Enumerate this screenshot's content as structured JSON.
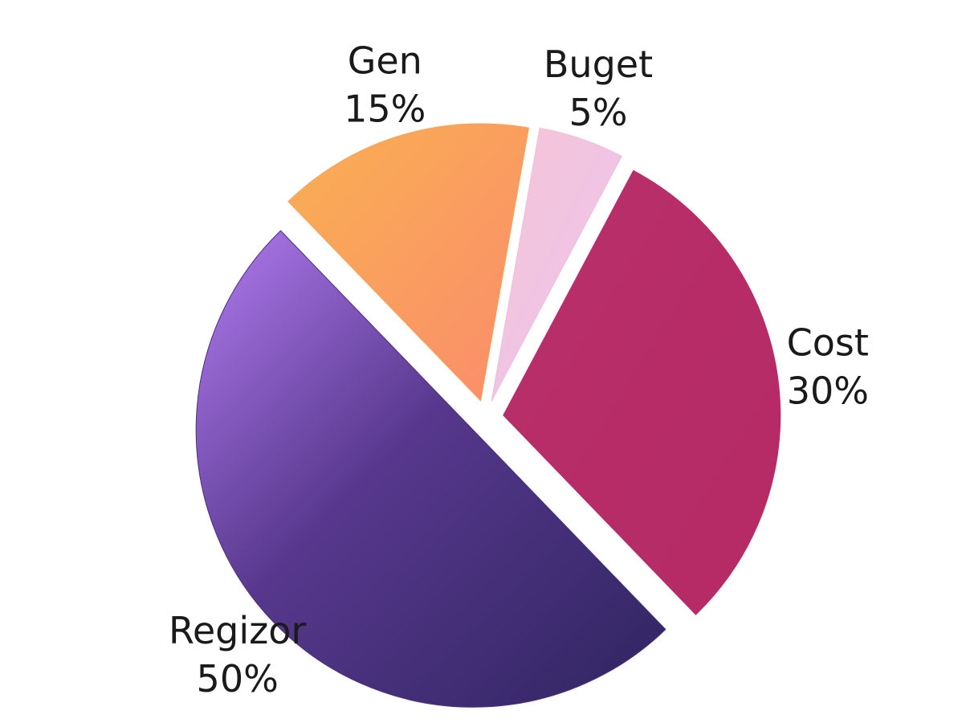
{
  "chart_data": {
    "type": "pie",
    "categories": [
      "Buget",
      "Cost",
      "Regizor",
      "Gen"
    ],
    "values": [
      5,
      30,
      50,
      15
    ],
    "value_labels": [
      "5%",
      "30%",
      "50%",
      "15%"
    ],
    "colors": [
      "#f0bcd8",
      "#b82d68",
      "#4b3080",
      "#f7a256"
    ]
  }
}
